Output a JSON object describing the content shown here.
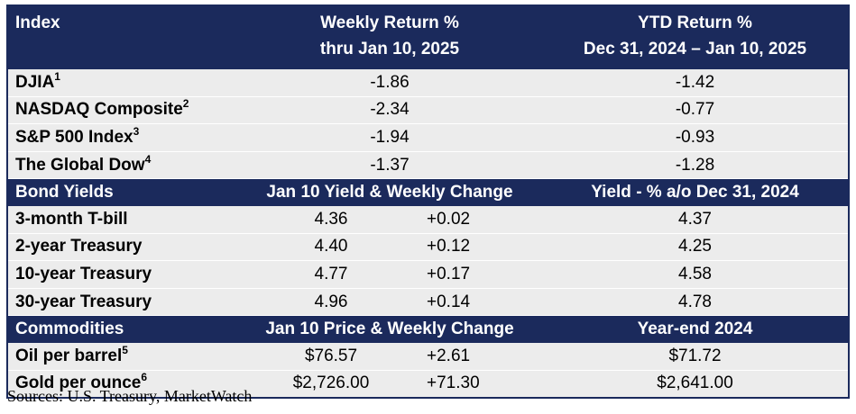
{
  "header": {
    "index": "Index",
    "weekly": [
      "Weekly Return %",
      "thru Jan 10, 2025"
    ],
    "ytd": [
      "YTD Return %",
      "Dec 31, 2024 – Jan 10, 2025"
    ]
  },
  "indexes": [
    {
      "name": "DJIA",
      "note": "1",
      "weekly": "-1.86",
      "ytd": "-1.42"
    },
    {
      "name": "NASDAQ Composite",
      "note": "2",
      "weekly": "-2.34",
      "ytd": "-0.77"
    },
    {
      "name": "S&P 500 Index",
      "note": "3",
      "weekly": "-1.94",
      "ytd": "-0.93"
    },
    {
      "name": "The Global Dow",
      "note": "4",
      "weekly": "-1.37",
      "ytd": "-1.28"
    }
  ],
  "bonds": {
    "header": [
      "Bond Yields",
      "Jan 10 Yield & Weekly Change",
      "Yield - % a/o Dec 31, 2024"
    ],
    "rows": [
      {
        "name": "3-month T-bill",
        "value": "4.36",
        "change": "+0.02",
        "prior": "4.37"
      },
      {
        "name": "2-year Treasury",
        "value": "4.40",
        "change": "+0.12",
        "prior": "4.25"
      },
      {
        "name": "10-year Treasury",
        "value": "4.77",
        "change": "+0.17",
        "prior": "4.58"
      },
      {
        "name": "30-year Treasury",
        "value": "4.96",
        "change": "+0.14",
        "prior": "4.78"
      }
    ]
  },
  "commodities": {
    "header": [
      "Commodities",
      "Jan 10 Price & Weekly Change",
      "Year-end 2024"
    ],
    "rows": [
      {
        "name": "Oil per barrel",
        "note": "5",
        "value": "$76.57",
        "change": "+2.61",
        "prior": "$71.72"
      },
      {
        "name": "Gold per ounce",
        "note": "6",
        "value": "$2,726.00",
        "change": "+71.30",
        "prior": "$2,641.00"
      }
    ]
  },
  "sources": "Sources:  U.S. Treasury, MarketWatch"
}
